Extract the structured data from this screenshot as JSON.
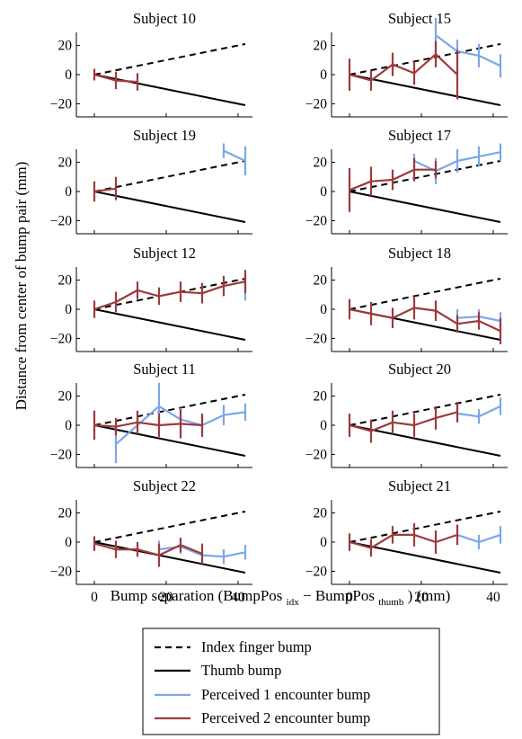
{
  "chart_data": {
    "type": "line",
    "xlabel": {
      "main": "Bump separation (BumpPos",
      "sub1": "idx",
      "mid": " − BumpPos",
      "sub2": "thumb",
      "end": ") (mm)"
    },
    "ylabel": "Distance from center of bump pair (mm)",
    "xlim": [
      -5,
      44
    ],
    "ylim": [
      -29,
      29
    ],
    "xticks": [
      "0",
      "20",
      "40"
    ],
    "yticks": [
      "20",
      "0",
      "−20"
    ],
    "grid": false,
    "legend": {
      "placement": "bottom-center",
      "entries": [
        {
          "label": "Index finger bump",
          "style": "dashed",
          "color": "#000000"
        },
        {
          "label": "Thumb bump",
          "style": "solid",
          "color": "#000000"
        },
        {
          "label": "Perceived 1 encounter bump",
          "style": "solid",
          "color": "#7aa7ea"
        },
        {
          "label": "Perceived 2 encounter bump",
          "style": "solid",
          "color": "#9e3a3d"
        }
      ]
    },
    "reference_lines": {
      "index_finger": {
        "x": [
          0,
          42
        ],
        "y": [
          0,
          21
        ]
      },
      "thumb": {
        "x": [
          0,
          42
        ],
        "y": [
          0,
          -21
        ]
      }
    },
    "panels": [
      {
        "title": "Subject 10",
        "one": [],
        "two": [
          {
            "x": 0,
            "y": 0,
            "e": 4
          },
          {
            "x": 6,
            "y": -4,
            "e": 6
          },
          {
            "x": 12,
            "y": -5,
            "e": 6
          }
        ]
      },
      {
        "title": "Subject 15",
        "one": [
          {
            "x": 24,
            "y": 27,
            "e": 12
          },
          {
            "x": 30,
            "y": 16,
            "e": 8
          },
          {
            "x": 36,
            "y": 13,
            "e": 8
          },
          {
            "x": 42,
            "y": 6,
            "e": 8
          }
        ],
        "two": [
          {
            "x": 0,
            "y": 0,
            "e": 11
          },
          {
            "x": 6,
            "y": -4,
            "e": 7
          },
          {
            "x": 12,
            "y": 7,
            "e": 8
          },
          {
            "x": 18,
            "y": 1,
            "e": 8
          },
          {
            "x": 24,
            "y": 14,
            "e": 9
          },
          {
            "x": 30,
            "y": 0,
            "e": 17
          }
        ]
      },
      {
        "title": "Subject 19",
        "one": [
          {
            "x": 36,
            "y": 28,
            "e": 5
          },
          {
            "x": 42,
            "y": 21,
            "e": 10
          }
        ],
        "two": [
          {
            "x": 0,
            "y": 0,
            "e": 7
          },
          {
            "x": 6,
            "y": 2,
            "e": 8
          }
        ]
      },
      {
        "title": "Subject 17",
        "one": [
          {
            "x": 18,
            "y": 21,
            "e": 5
          },
          {
            "x": 24,
            "y": 14,
            "e": 9
          },
          {
            "x": 30,
            "y": 21,
            "e": 8
          },
          {
            "x": 36,
            "y": 24,
            "e": 7
          },
          {
            "x": 42,
            "y": 27,
            "e": 6
          }
        ],
        "two": [
          {
            "x": 0,
            "y": 1,
            "e": 15
          },
          {
            "x": 6,
            "y": 7,
            "e": 10
          },
          {
            "x": 12,
            "y": 8,
            "e": 7
          },
          {
            "x": 18,
            "y": 15,
            "e": 8
          },
          {
            "x": 24,
            "y": 15,
            "e": 6
          }
        ]
      },
      {
        "title": "Subject 12",
        "one": [
          {
            "x": 42,
            "y": 14,
            "e": 8
          }
        ],
        "two": [
          {
            "x": 0,
            "y": 0,
            "e": 6
          },
          {
            "x": 6,
            "y": 5,
            "e": 7
          },
          {
            "x": 12,
            "y": 13,
            "e": 6
          },
          {
            "x": 18,
            "y": 9,
            "e": 6
          },
          {
            "x": 24,
            "y": 12,
            "e": 7
          },
          {
            "x": 30,
            "y": 11,
            "e": 7
          },
          {
            "x": 36,
            "y": 16,
            "e": 7
          },
          {
            "x": 42,
            "y": 19,
            "e": 8
          }
        ]
      },
      {
        "title": "Subject 18",
        "one": [
          {
            "x": 30,
            "y": -6,
            "e": 6
          },
          {
            "x": 36,
            "y": -5,
            "e": 5
          },
          {
            "x": 42,
            "y": -8,
            "e": 6
          }
        ],
        "two": [
          {
            "x": 0,
            "y": 0,
            "e": 7
          },
          {
            "x": 6,
            "y": -3,
            "e": 8
          },
          {
            "x": 12,
            "y": -6,
            "e": 7
          },
          {
            "x": 18,
            "y": 1,
            "e": 8
          },
          {
            "x": 24,
            "y": -1,
            "e": 7
          },
          {
            "x": 30,
            "y": -10,
            "e": 6
          },
          {
            "x": 36,
            "y": -8,
            "e": 6
          },
          {
            "x": 42,
            "y": -15,
            "e": 9
          }
        ]
      },
      {
        "title": "Subject 11",
        "one": [
          {
            "x": 6,
            "y": -13,
            "e": 13
          },
          {
            "x": 18,
            "y": 13,
            "e": 16
          },
          {
            "x": 24,
            "y": 4,
            "e": 8
          },
          {
            "x": 30,
            "y": 0,
            "e": 6
          },
          {
            "x": 36,
            "y": 7,
            "e": 7
          },
          {
            "x": 42,
            "y": 9,
            "e": 6
          }
        ],
        "two": [
          {
            "x": 0,
            "y": 0,
            "e": 10
          },
          {
            "x": 6,
            "y": -1,
            "e": 6
          },
          {
            "x": 12,
            "y": 2,
            "e": 8
          },
          {
            "x": 18,
            "y": 0,
            "e": 8
          },
          {
            "x": 24,
            "y": 1,
            "e": 10
          },
          {
            "x": 30,
            "y": 0,
            "e": 8
          }
        ]
      },
      {
        "title": "Subject 20",
        "one": [
          {
            "x": 30,
            "y": 8,
            "e": 5
          },
          {
            "x": 36,
            "y": 6,
            "e": 5
          },
          {
            "x": 42,
            "y": 13,
            "e": 6
          }
        ],
        "two": [
          {
            "x": 0,
            "y": 0,
            "e": 8
          },
          {
            "x": 6,
            "y": -4,
            "e": 8
          },
          {
            "x": 12,
            "y": 2,
            "e": 8
          },
          {
            "x": 18,
            "y": 0,
            "e": 8
          },
          {
            "x": 24,
            "y": 5,
            "e": 8
          },
          {
            "x": 30,
            "y": 9,
            "e": 7
          }
        ]
      },
      {
        "title": "Subject 22",
        "one": [
          {
            "x": 18,
            "y": -5,
            "e": 6
          },
          {
            "x": 24,
            "y": -3,
            "e": 5
          },
          {
            "x": 30,
            "y": -9,
            "e": 5
          },
          {
            "x": 36,
            "y": -10,
            "e": 5
          },
          {
            "x": 42,
            "y": -7,
            "e": 5
          }
        ],
        "two": [
          {
            "x": 0,
            "y": -1,
            "e": 5
          },
          {
            "x": 6,
            "y": -5,
            "e": 6
          },
          {
            "x": 12,
            "y": -5,
            "e": 5
          },
          {
            "x": 18,
            "y": -9,
            "e": 8
          },
          {
            "x": 24,
            "y": -2,
            "e": 5
          },
          {
            "x": 30,
            "y": -8,
            "e": 7
          }
        ]
      },
      {
        "title": "Subject 21",
        "one": [
          {
            "x": 30,
            "y": 5,
            "e": 6
          },
          {
            "x": 36,
            "y": 0,
            "e": 5
          },
          {
            "x": 42,
            "y": 5,
            "e": 6
          }
        ],
        "two": [
          {
            "x": 0,
            "y": 0,
            "e": 6
          },
          {
            "x": 6,
            "y": -4,
            "e": 6
          },
          {
            "x": 12,
            "y": 5,
            "e": 6
          },
          {
            "x": 18,
            "y": 5,
            "e": 8
          },
          {
            "x": 24,
            "y": 0,
            "e": 8
          },
          {
            "x": 30,
            "y": 5,
            "e": 7
          }
        ]
      }
    ]
  }
}
